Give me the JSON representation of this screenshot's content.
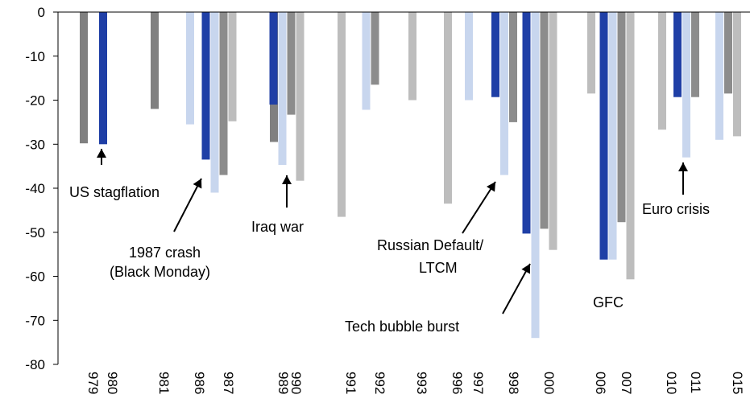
{
  "chart_data": {
    "type": "bar",
    "title": "",
    "xlabel": "",
    "ylabel": "",
    "ylim": [
      -80,
      0
    ],
    "yticks": [
      0,
      -10,
      -20,
      -30,
      -40,
      -50,
      -60,
      -70,
      -80
    ],
    "grid": false,
    "legend": "none",
    "colors": {
      "series_1": "#808080",
      "series_2": "#1f3fa6",
      "series_3": "#c8d6ee",
      "series_4": "#8c8c8c",
      "series_5": "#bdbdbd"
    },
    "categories": [
      "979",
      "980",
      "981",
      "986",
      "987",
      "989",
      "990",
      "991",
      "992",
      "993",
      "996",
      "997",
      "998",
      "000",
      "006",
      "007",
      "010",
      "011",
      "015"
    ],
    "series": [
      {
        "values": [
          -29.8,
          null,
          -22,
          null,
          null,
          -29.5,
          null,
          null,
          null,
          null,
          null,
          null,
          null,
          null,
          null,
          null,
          null,
          null,
          null
        ]
      },
      {
        "values": [
          null,
          -30,
          null,
          null,
          -33.5,
          null,
          -21,
          null,
          null,
          null,
          null,
          null,
          -19.3,
          -50.3,
          null,
          -56.2,
          null,
          -19.3,
          null
        ]
      },
      {
        "values": [
          null,
          null,
          null,
          -25.5,
          -41,
          null,
          -34.7,
          null,
          -22.2,
          null,
          null,
          -20,
          -37,
          -74,
          null,
          -56.2,
          null,
          -33,
          -29
        ]
      },
      {
        "values": [
          null,
          null,
          null,
          null,
          -37,
          null,
          -23.3,
          null,
          -16.5,
          null,
          null,
          null,
          -25,
          -49.2,
          null,
          -47.7,
          null,
          -19.3,
          -18.5
        ]
      },
      {
        "values": [
          null,
          null,
          null,
          null,
          -24.8,
          null,
          -38.3,
          -46.5,
          null,
          -20,
          -43.5,
          null,
          null,
          -54,
          -18.5,
          -60.7,
          -26.7,
          null,
          -28.2
        ]
      }
    ],
    "annotations": [
      {
        "text": "US stagflation",
        "target": "980"
      },
      {
        "text": "1987 crash",
        "text2": "(Black Monday)",
        "target": "987"
      },
      {
        "text": "Iraq war",
        "target": "990"
      },
      {
        "text": "Russian Default/",
        "text2": "LTCM",
        "target": "998"
      },
      {
        "text": "Tech bubble burst",
        "target": "000"
      },
      {
        "text": "GFC",
        "target": "007"
      },
      {
        "text": "Euro crisis",
        "target": "011"
      }
    ]
  }
}
